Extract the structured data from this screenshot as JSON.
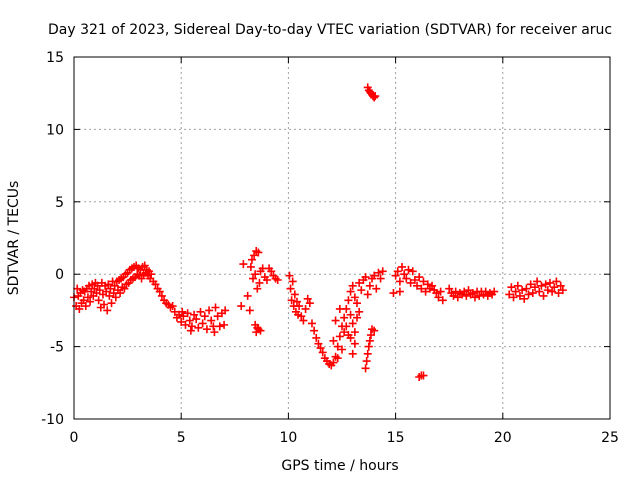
{
  "chart_data": {
    "type": "scatter",
    "title": "Day 321 of 2023, Sidereal Day-to-day VTEC variation (SDTVAR) for receiver aruc",
    "xlabel": "GPS time / hours",
    "ylabel": "SDTVAR / TECUs",
    "xlim": [
      0,
      25
    ],
    "ylim": [
      -10,
      15
    ],
    "xticks": [
      0,
      5,
      10,
      15,
      20,
      25
    ],
    "yticks": [
      -10,
      -5,
      0,
      5,
      10,
      15
    ],
    "xtick_labels": [
      "0",
      "5",
      "10",
      "15",
      "20",
      "25"
    ],
    "ytick_labels": [
      "-10",
      "-5",
      "0",
      "5",
      "10",
      "15"
    ],
    "grid": true,
    "marker": "+",
    "series": [
      {
        "name": "SDTVAR",
        "color": "#ff0000",
        "points": [
          [
            0.0,
            -1.6
          ],
          [
            0.1,
            -2.2
          ],
          [
            0.15,
            -1.0
          ],
          [
            0.2,
            -1.5
          ],
          [
            0.25,
            -2.4
          ],
          [
            0.3,
            -1.3
          ],
          [
            0.35,
            -2.0
          ],
          [
            0.4,
            -1.1
          ],
          [
            0.45,
            -1.8
          ],
          [
            0.5,
            -1.2
          ],
          [
            0.55,
            -2.2
          ],
          [
            0.6,
            -1.0
          ],
          [
            0.65,
            -1.6
          ],
          [
            0.7,
            -0.8
          ],
          [
            0.75,
            -1.9
          ],
          [
            0.8,
            -1.2
          ],
          [
            0.85,
            -0.7
          ],
          [
            0.9,
            -1.5
          ],
          [
            0.95,
            -1.0
          ],
          [
            1.0,
            -0.6
          ],
          [
            1.05,
            -1.3
          ],
          [
            1.1,
            -0.8
          ],
          [
            1.15,
            -1.8
          ],
          [
            1.2,
            -1.1
          ],
          [
            1.25,
            -2.3
          ],
          [
            1.3,
            -0.6
          ],
          [
            1.35,
            -1.4
          ],
          [
            1.4,
            -2.1
          ],
          [
            1.45,
            -0.8
          ],
          [
            1.5,
            -1.2
          ],
          [
            1.55,
            -2.5
          ],
          [
            1.6,
            -0.7
          ],
          [
            1.65,
            -1.5
          ],
          [
            1.7,
            -1.0
          ],
          [
            1.75,
            -2.0
          ],
          [
            1.8,
            -0.5
          ],
          [
            1.85,
            -1.3
          ],
          [
            1.9,
            -0.8
          ],
          [
            1.95,
            -1.6
          ],
          [
            2.0,
            -0.5
          ],
          [
            2.05,
            -1.1
          ],
          [
            2.1,
            -0.4
          ],
          [
            2.15,
            -1.3
          ],
          [
            2.2,
            -0.3
          ],
          [
            2.25,
            -0.9
          ],
          [
            2.3,
            -0.2
          ],
          [
            2.35,
            -1.0
          ],
          [
            2.4,
            0.0
          ],
          [
            2.45,
            -0.7
          ],
          [
            2.5,
            0.1
          ],
          [
            2.55,
            -0.6
          ],
          [
            2.6,
            0.3
          ],
          [
            2.65,
            -0.4
          ],
          [
            2.7,
            0.4
          ],
          [
            2.75,
            -0.3
          ],
          [
            2.8,
            0.5
          ],
          [
            2.85,
            -0.2
          ],
          [
            2.9,
            0.6
          ],
          [
            2.95,
            0.0
          ],
          [
            3.0,
            0.4
          ],
          [
            3.05,
            -0.1
          ],
          [
            3.1,
            0.3
          ],
          [
            3.15,
            -0.3
          ],
          [
            3.2,
            0.5
          ],
          [
            3.25,
            0.0
          ],
          [
            3.3,
            0.6
          ],
          [
            3.35,
            0.1
          ],
          [
            3.4,
            0.3
          ],
          [
            3.45,
            -0.1
          ],
          [
            3.5,
            0.2
          ],
          [
            3.55,
            -0.3
          ],
          [
            3.6,
            0.0
          ],
          [
            3.7,
            -0.5
          ],
          [
            3.8,
            -0.7
          ],
          [
            3.9,
            -1.0
          ],
          [
            4.0,
            -1.2
          ],
          [
            4.1,
            -1.5
          ],
          [
            4.2,
            -1.8
          ],
          [
            4.3,
            -2.0
          ],
          [
            4.4,
            -2.1
          ],
          [
            4.5,
            -2.3
          ],
          [
            4.6,
            -2.2
          ],
          [
            4.7,
            -2.6
          ],
          [
            4.8,
            -3.0
          ],
          [
            4.9,
            -2.8
          ],
          [
            5.0,
            -3.3
          ],
          [
            5.1,
            -2.9
          ],
          [
            5.2,
            -3.5
          ],
          [
            5.3,
            -2.7
          ],
          [
            5.4,
            -3.2
          ],
          [
            5.5,
            -3.6
          ],
          [
            5.6,
            -2.8
          ],
          [
            5.7,
            -3.1
          ],
          [
            5.8,
            -3.7
          ],
          [
            5.9,
            -2.6
          ],
          [
            6.0,
            -3.4
          ],
          [
            6.1,
            -2.9
          ],
          [
            6.2,
            -3.8
          ],
          [
            6.3,
            -2.5
          ],
          [
            6.4,
            -3.2
          ],
          [
            6.5,
            -3.6
          ],
          [
            6.6,
            -2.3
          ],
          [
            6.7,
            -2.9
          ],
          [
            6.8,
            -3.6
          ],
          [
            6.9,
            -2.7
          ],
          [
            7.0,
            -3.5
          ],
          [
            7.05,
            -2.5
          ],
          [
            5.05,
            -2.6
          ],
          [
            5.45,
            -3.9
          ],
          [
            6.55,
            -4.0
          ],
          [
            7.8,
            -2.2
          ],
          [
            7.9,
            0.7
          ],
          [
            8.1,
            -1.5
          ],
          [
            8.2,
            -2.5
          ],
          [
            8.25,
            0.5
          ],
          [
            8.3,
            1.0
          ],
          [
            8.35,
            -0.3
          ],
          [
            8.4,
            1.3
          ],
          [
            8.45,
            0.0
          ],
          [
            8.5,
            1.6
          ],
          [
            8.55,
            -1.0
          ],
          [
            8.6,
            1.5
          ],
          [
            8.65,
            -0.6
          ],
          [
            8.7,
            0.2
          ],
          [
            8.45,
            -3.5
          ],
          [
            8.5,
            -4.0
          ],
          [
            8.55,
            -3.7
          ],
          [
            8.6,
            -3.8
          ],
          [
            8.7,
            -3.9
          ],
          [
            8.8,
            0.4
          ],
          [
            8.9,
            -0.2
          ],
          [
            9.0,
            -0.4
          ],
          [
            9.1,
            0.4
          ],
          [
            9.2,
            0.2
          ],
          [
            9.3,
            -0.1
          ],
          [
            9.4,
            -0.3
          ],
          [
            9.5,
            -0.4
          ],
          [
            10.05,
            -0.1
          ],
          [
            10.1,
            -1.0
          ],
          [
            10.15,
            -1.8
          ],
          [
            10.2,
            -0.5
          ],
          [
            10.25,
            -2.2
          ],
          [
            10.3,
            -1.4
          ],
          [
            10.35,
            -2.6
          ],
          [
            10.4,
            -1.9
          ],
          [
            10.45,
            -2.8
          ],
          [
            10.5,
            -2.2
          ],
          [
            10.6,
            -2.9
          ],
          [
            10.7,
            -3.2
          ],
          [
            10.8,
            -2.4
          ],
          [
            10.9,
            -1.7
          ],
          [
            11.0,
            -2.0
          ],
          [
            11.1,
            -3.4
          ],
          [
            11.2,
            -3.9
          ],
          [
            11.3,
            -4.4
          ],
          [
            11.4,
            -4.8
          ],
          [
            11.5,
            -5.1
          ],
          [
            11.6,
            -5.4
          ],
          [
            11.7,
            -5.8
          ],
          [
            11.8,
            -6.0
          ],
          [
            11.9,
            -6.2
          ],
          [
            12.0,
            -6.3
          ],
          [
            12.1,
            -6.1
          ],
          [
            12.2,
            -5.7
          ],
          [
            12.3,
            -5.0
          ],
          [
            12.4,
            -4.3
          ],
          [
            12.5,
            -3.6
          ],
          [
            12.6,
            -3.0
          ],
          [
            12.7,
            -2.4
          ],
          [
            12.8,
            -1.8
          ],
          [
            12.9,
            -1.2
          ],
          [
            13.0,
            -0.8
          ],
          [
            13.1,
            -1.6
          ],
          [
            13.2,
            -2.0
          ],
          [
            13.3,
            -0.6
          ],
          [
            13.4,
            -1.1
          ],
          [
            13.5,
            -0.4
          ],
          [
            13.6,
            -0.2
          ],
          [
            13.7,
            -1.4
          ],
          [
            13.8,
            -0.8
          ],
          [
            13.9,
            -0.3
          ],
          [
            14.0,
            -0.1
          ],
          [
            14.1,
            -1.0
          ],
          [
            14.2,
            0.1
          ],
          [
            14.3,
            -0.3
          ],
          [
            14.4,
            0.2
          ],
          [
            12.1,
            -4.6
          ],
          [
            12.2,
            -3.2
          ],
          [
            12.3,
            -5.8
          ],
          [
            12.4,
            -2.4
          ],
          [
            12.5,
            -5.2
          ],
          [
            12.6,
            -4.0
          ],
          [
            12.7,
            -3.6
          ],
          [
            12.8,
            -4.2
          ],
          [
            12.9,
            -2.8
          ],
          [
            13.0,
            -3.4
          ],
          [
            13.1,
            -4.0
          ],
          [
            13.2,
            -3.0
          ],
          [
            13.0,
            -5.5
          ],
          [
            13.1,
            -4.8
          ],
          [
            12.9,
            -4.4
          ],
          [
            13.3,
            -2.6
          ],
          [
            13.6,
            -6.5
          ],
          [
            13.65,
            -6.0
          ],
          [
            13.7,
            -5.5
          ],
          [
            13.75,
            -5.0
          ],
          [
            13.8,
            -4.6
          ],
          [
            13.85,
            -4.2
          ],
          [
            13.9,
            -3.8
          ],
          [
            14.0,
            -3.9
          ],
          [
            13.7,
            12.9
          ],
          [
            13.75,
            12.7
          ],
          [
            13.8,
            12.6
          ],
          [
            13.85,
            12.5
          ],
          [
            13.9,
            12.4
          ],
          [
            13.95,
            12.3
          ],
          [
            14.0,
            12.2
          ],
          [
            14.05,
            12.3
          ],
          [
            15.0,
            -0.1
          ],
          [
            15.1,
            0.2
          ],
          [
            15.2,
            -0.5
          ],
          [
            15.3,
            0.5
          ],
          [
            15.4,
            0.0
          ],
          [
            15.5,
            -0.3
          ],
          [
            15.6,
            0.3
          ],
          [
            15.7,
            -0.6
          ],
          [
            15.8,
            0.2
          ],
          [
            15.9,
            -0.4
          ],
          [
            16.0,
            -0.8
          ],
          [
            16.1,
            -0.2
          ],
          [
            16.2,
            -1.0
          ],
          [
            16.3,
            -0.5
          ],
          [
            16.4,
            -1.2
          ],
          [
            16.5,
            -0.7
          ],
          [
            16.6,
            -1.0
          ],
          [
            16.7,
            -0.8
          ],
          [
            16.8,
            -1.1
          ],
          [
            16.9,
            -1.3
          ],
          [
            17.0,
            -1.6
          ],
          [
            17.1,
            -1.2
          ],
          [
            17.2,
            -1.8
          ],
          [
            15.2,
            -1.2
          ],
          [
            14.9,
            -1.3
          ],
          [
            16.1,
            -7.1
          ],
          [
            16.2,
            -7.0
          ],
          [
            16.3,
            -7.0
          ],
          [
            17.5,
            -1.0
          ],
          [
            17.6,
            -1.3
          ],
          [
            17.7,
            -1.5
          ],
          [
            17.8,
            -1.2
          ],
          [
            17.9,
            -1.6
          ],
          [
            18.0,
            -1.3
          ],
          [
            18.1,
            -1.4
          ],
          [
            18.2,
            -1.2
          ],
          [
            18.3,
            -1.5
          ],
          [
            18.4,
            -1.1
          ],
          [
            18.5,
            -1.4
          ],
          [
            18.6,
            -1.3
          ],
          [
            18.7,
            -1.6
          ],
          [
            18.8,
            -1.2
          ],
          [
            18.9,
            -1.5
          ],
          [
            19.0,
            -1.2
          ],
          [
            19.1,
            -1.4
          ],
          [
            19.2,
            -1.2
          ],
          [
            19.3,
            -1.5
          ],
          [
            19.4,
            -1.3
          ],
          [
            19.5,
            -1.4
          ],
          [
            19.6,
            -1.2
          ],
          [
            20.3,
            -1.4
          ],
          [
            20.4,
            -0.9
          ],
          [
            20.5,
            -1.6
          ],
          [
            20.6,
            -1.2
          ],
          [
            20.7,
            -0.8
          ],
          [
            20.8,
            -1.5
          ],
          [
            20.9,
            -1.1
          ],
          [
            21.0,
            -1.7
          ],
          [
            21.1,
            -1.0
          ],
          [
            21.2,
            -1.4
          ],
          [
            21.3,
            -0.7
          ],
          [
            21.4,
            -1.3
          ],
          [
            21.5,
            -0.9
          ],
          [
            21.6,
            -0.5
          ],
          [
            21.7,
            -1.2
          ],
          [
            21.8,
            -0.8
          ],
          [
            21.9,
            -1.5
          ],
          [
            22.0,
            -0.7
          ],
          [
            22.1,
            -1.1
          ],
          [
            22.2,
            -0.6
          ],
          [
            22.3,
            -1.2
          ],
          [
            22.4,
            -0.9
          ],
          [
            22.5,
            -0.5
          ],
          [
            22.6,
            -1.3
          ],
          [
            22.7,
            -0.8
          ],
          [
            22.8,
            -1.1
          ]
        ]
      }
    ]
  }
}
